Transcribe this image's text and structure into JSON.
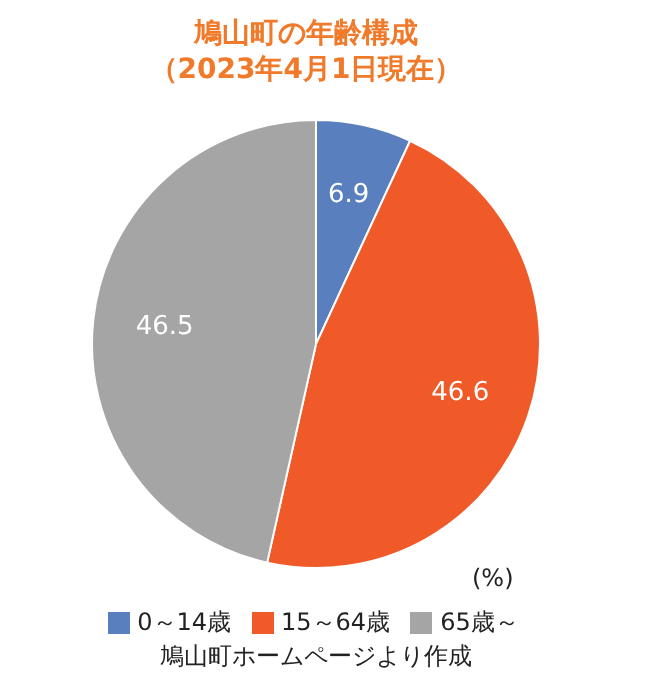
{
  "chart_data": {
    "type": "pie",
    "title": "鳩山町の年齢構成",
    "subtitle": "（2023年4月1日現在）",
    "categories": [
      "0～14歳",
      "15～64歳",
      "65歳～"
    ],
    "values": [
      6.9,
      46.6,
      46.5
    ],
    "colors": [
      "#5a7fbf",
      "#f05a28",
      "#a5a5a5"
    ],
    "data_labels": true,
    "legend": "bottom",
    "annotations": [
      "(%)",
      "鳩山町ホームページより作成"
    ]
  }
}
